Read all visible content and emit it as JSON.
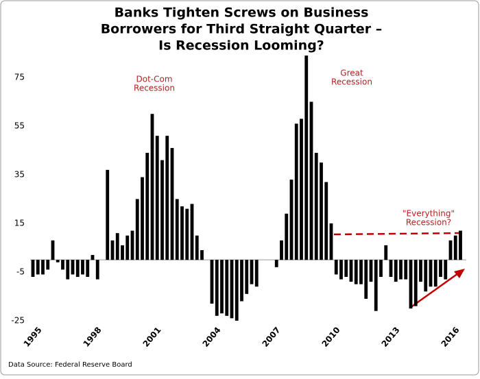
{
  "chart_data": {
    "type": "bar",
    "title": [
      "Banks Tighten Screws on Business",
      "Borrowers for Third Straight Quarter –",
      "Is Recession Looming?"
    ],
    "categories": [
      "1995",
      null,
      null,
      null,
      null,
      null,
      null,
      null,
      null,
      null,
      null,
      null,
      "1998",
      null,
      null,
      null,
      null,
      null,
      null,
      null,
      null,
      null,
      null,
      null,
      "2001",
      null,
      null,
      null,
      null,
      null,
      null,
      null,
      null,
      null,
      null,
      null,
      "2004",
      null,
      null,
      null,
      null,
      null,
      null,
      null,
      null,
      null,
      null,
      null,
      "2007",
      null,
      null,
      null,
      null,
      null,
      null,
      null,
      null,
      null,
      null,
      null,
      "2010",
      null,
      null,
      null,
      null,
      null,
      null,
      null,
      null,
      null,
      null,
      null,
      "2013",
      null,
      null,
      null,
      null,
      null,
      null,
      null,
      null,
      null,
      null,
      null,
      "2016",
      null,
      null
    ],
    "values": [
      -7,
      -6,
      -6,
      -4,
      8,
      -1,
      -4,
      -8,
      -6,
      -7,
      -6,
      -7,
      2,
      -8,
      0,
      37,
      8,
      11,
      6,
      10,
      12,
      25,
      34,
      44,
      60,
      51,
      41,
      51,
      46,
      25,
      22,
      21,
      23,
      10,
      4,
      0,
      -18,
      -23,
      -22,
      -23,
      -24,
      -25,
      -17,
      -14,
      -10,
      -11,
      0,
      0,
      0,
      -3,
      8,
      19,
      33,
      56,
      58,
      84,
      65,
      44,
      40,
      32,
      15,
      -6,
      -8,
      -7,
      -9,
      -10,
      -10,
      -16,
      -9,
      -21,
      -7,
      6,
      -7,
      -9,
      -8,
      -8,
      -20,
      -19,
      -9,
      -13,
      -11,
      -11,
      -7,
      -8,
      8,
      10,
      12
    ],
    "color": "#000000",
    "ylim": [
      -27,
      85
    ],
    "yticks": [
      -25,
      -5,
      15,
      35,
      55,
      75
    ],
    "grid": false,
    "annotations": [
      [
        "Dot-Com",
        "Recession"
      ],
      [
        "Great",
        "Recession"
      ],
      [
        "\"Everything\"",
        "Recession?"
      ]
    ],
    "annotation_color": "#b22222",
    "source": "Data Source:   Federal Reserve Board"
  }
}
